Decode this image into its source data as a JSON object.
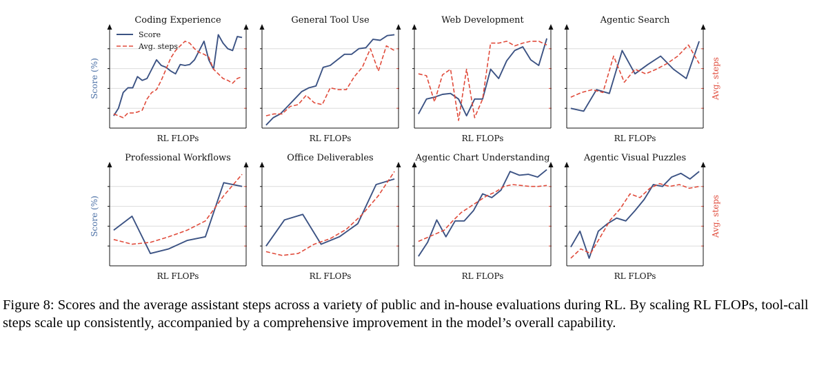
{
  "caption": "Figure 8: Scores and the average assistant steps across a variety of public and in-house evaluations during RL. By scaling RL FLOPs, tool-call steps scale up consistently, accompanied by a comprehensive improvement in the model’s overall capability.",
  "colors": {
    "score": "#3b5283",
    "steps": "#e04a3a",
    "grid": "#dcdcdc",
    "axis": "#111111"
  },
  "chart_data": [
    {
      "type": "line",
      "title": "Coding Experience",
      "xlabel": "RL FLOPs",
      "ylabel_left": "Score (%)",
      "ylabel_right": "",
      "legend": {
        "placement": "top-left",
        "entries": [
          "Score",
          "Avg. steps"
        ]
      },
      "grid": true,
      "ylim": [
        0,
        1
      ],
      "series": [
        {
          "name": "Score",
          "style": "solid",
          "values": [
            0.1,
            0.18,
            0.35,
            0.4,
            0.4,
            0.52,
            0.48,
            0.5,
            0.6,
            0.7,
            0.64,
            0.62,
            0.58,
            0.55,
            0.65,
            0.64,
            0.65,
            0.7,
            0.8,
            0.9,
            0.7,
            0.6,
            0.97,
            0.88,
            0.82,
            0.8,
            0.95,
            0.94
          ]
        },
        {
          "name": "Avg. steps",
          "style": "dashed",
          "values": [
            0.12,
            0.1,
            0.08,
            0.13,
            0.13,
            0.14,
            0.16,
            0.28,
            0.35,
            0.38,
            0.48,
            0.6,
            0.72,
            0.8,
            0.85,
            0.9,
            0.88,
            0.82,
            0.78,
            0.76,
            0.73,
            0.6,
            0.55,
            0.5,
            0.48,
            0.45,
            0.5,
            0.52
          ]
        }
      ]
    },
    {
      "type": "line",
      "title": "General Tool Use",
      "xlabel": "RL FLOPs",
      "ylabel_left": "",
      "ylabel_right": "",
      "grid": true,
      "ylim": [
        0,
        1
      ],
      "series": [
        {
          "name": "Score",
          "values": [
            0.0,
            0.08,
            0.12,
            0.2,
            0.28,
            0.36,
            0.4,
            0.42,
            0.62,
            0.64,
            0.7,
            0.76,
            0.76,
            0.82,
            0.83,
            0.92,
            0.91,
            0.96,
            0.97
          ]
        },
        {
          "name": "Avg. steps",
          "values": [
            0.1,
            0.12,
            0.12,
            0.2,
            0.22,
            0.32,
            0.24,
            0.22,
            0.4,
            0.38,
            0.38,
            0.52,
            0.62,
            0.82,
            0.58,
            0.85,
            0.8
          ]
        }
      ]
    },
    {
      "type": "line",
      "title": "Web Development",
      "xlabel": "RL FLOPs",
      "ylabel_left": "",
      "ylabel_right": "",
      "grid": true,
      "ylim": [
        0,
        1
      ],
      "series": [
        {
          "name": "Score",
          "values": [
            0.12,
            0.28,
            0.3,
            0.33,
            0.34,
            0.28,
            0.1,
            0.28,
            0.28,
            0.6,
            0.5,
            0.69,
            0.8,
            0.84,
            0.7,
            0.64,
            0.93
          ]
        },
        {
          "name": "Avg. steps",
          "values": [
            0.55,
            0.53,
            0.25,
            0.54,
            0.6,
            0.05,
            0.6,
            0.08,
            0.28,
            0.88,
            0.88,
            0.9,
            0.85,
            0.88,
            0.9,
            0.9,
            0.86
          ]
        }
      ]
    },
    {
      "type": "line",
      "title": "Agentic Search",
      "xlabel": "RL FLOPs",
      "ylabel_left": "",
      "ylabel_right": "Avg. steps",
      "grid": true,
      "ylim": [
        0,
        1
      ],
      "series": [
        {
          "name": "Score",
          "values": [
            0.18,
            0.15,
            0.38,
            0.34,
            0.8,
            0.55,
            0.65,
            0.74,
            0.6,
            0.5,
            0.9
          ]
        },
        {
          "name": "Avg. steps",
          "values": [
            0.3,
            0.35,
            0.38,
            0.35,
            0.74,
            0.46,
            0.6,
            0.55,
            0.6,
            0.66,
            0.74,
            0.86,
            0.66
          ]
        }
      ]
    },
    {
      "type": "line",
      "title": "Professional Workflows",
      "xlabel": "RL FLOPs",
      "ylabel_left": "Score (%)",
      "ylabel_right": "",
      "grid": true,
      "ylim": [
        0,
        1
      ],
      "series": [
        {
          "name": "Score",
          "values": [
            0.35,
            0.5,
            0.1,
            0.15,
            0.24,
            0.28,
            0.86,
            0.82
          ]
        },
        {
          "name": "Avg. steps",
          "values": [
            0.25,
            0.2,
            0.22,
            0.28,
            0.35,
            0.45,
            0.72,
            0.95
          ]
        }
      ]
    },
    {
      "type": "line",
      "title": "Office Deliverables",
      "xlabel": "RL FLOPs",
      "ylabel_left": "",
      "ylabel_right": "",
      "grid": true,
      "ylim": [
        0,
        1
      ],
      "series": [
        {
          "name": "Score",
          "values": [
            0.18,
            0.46,
            0.52,
            0.2,
            0.28,
            0.42,
            0.84,
            0.9
          ]
        },
        {
          "name": "Avg. steps",
          "values": [
            0.12,
            0.08,
            0.1,
            0.2,
            0.26,
            0.36,
            0.52,
            0.72,
            0.98
          ]
        }
      ]
    },
    {
      "type": "line",
      "title": "Agentic Chart Understanding",
      "xlabel": "RL FLOPs",
      "ylabel_left": "",
      "ylabel_right": "",
      "grid": true,
      "ylim": [
        0,
        1
      ],
      "series": [
        {
          "name": "Score",
          "values": [
            0.07,
            0.22,
            0.46,
            0.28,
            0.45,
            0.45,
            0.56,
            0.74,
            0.7,
            0.78,
            0.98,
            0.94,
            0.95,
            0.92,
            1.0
          ]
        },
        {
          "name": "Avg. steps",
          "values": [
            0.23,
            0.27,
            0.31,
            0.35,
            0.45,
            0.54,
            0.6,
            0.66,
            0.72,
            0.76,
            0.82,
            0.84,
            0.83,
            0.82,
            0.82,
            0.83
          ]
        }
      ]
    },
    {
      "type": "line",
      "title": "Agentic Visual Puzzles",
      "xlabel": "RL FLOPs",
      "ylabel_left": "",
      "ylabel_right": "Avg. steps",
      "grid": true,
      "ylim": [
        0,
        1
      ],
      "series": [
        {
          "name": "Score",
          "values": [
            0.17,
            0.34,
            0.05,
            0.34,
            0.42,
            0.48,
            0.45,
            0.56,
            0.68,
            0.84,
            0.82,
            0.92,
            0.96,
            0.9,
            0.98
          ]
        },
        {
          "name": "Avg. steps",
          "values": [
            0.05,
            0.15,
            0.1,
            0.28,
            0.46,
            0.58,
            0.74,
            0.7,
            0.8,
            0.85,
            0.82,
            0.84,
            0.8,
            0.82
          ]
        }
      ]
    }
  ]
}
